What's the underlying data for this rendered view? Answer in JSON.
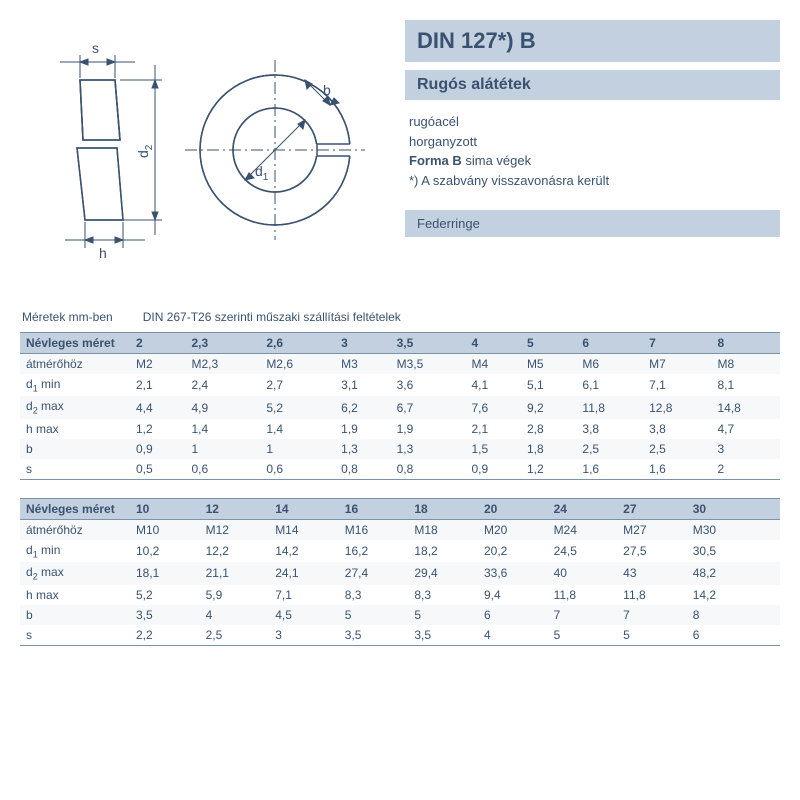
{
  "colors": {
    "text": "#3a5270",
    "header_bg": "#c2d0df",
    "row_stripe": "#f6f8fa",
    "border": "#7a93ab",
    "stroke": "#3a5270",
    "fill_shade": "#b8c8d8"
  },
  "info": {
    "title": "DIN 127*) B",
    "subtitle": "Rugós alátétek",
    "line1": "rugóacél",
    "line2": "horganyzott",
    "line3a": "Forma B",
    "line3b": " sima végek",
    "line4": "*) A szabvány visszavonásra került",
    "footer": "Federringe"
  },
  "diagram_labels": {
    "s": "s",
    "d2": "d",
    "d2sub": "2",
    "h": "h",
    "d1": "d",
    "d1sub": "1",
    "b": "b"
  },
  "caption": {
    "left": "Méretek mm-ben",
    "right": "DIN 267-T26 szerinti műszaki szállítási feltételek"
  },
  "row_labels": {
    "nm": "Névleges méret",
    "at": "átmérőhöz",
    "d1": "d₁ min",
    "d2": "d₂ max",
    "hm": "h max",
    "b": "b",
    "s": "s"
  },
  "table1": {
    "sizes": [
      "2",
      "2,3",
      "2,6",
      "3",
      "3,5",
      "4",
      "5",
      "6",
      "7",
      "8"
    ],
    "rows": [
      [
        "M2",
        "M2,3",
        "M2,6",
        "M3",
        "M3,5",
        "M4",
        "M5",
        "M6",
        "M7",
        "M8"
      ],
      [
        "2,1",
        "2,4",
        "2,7",
        "3,1",
        "3,6",
        "4,1",
        "5,1",
        "6,1",
        "7,1",
        "8,1"
      ],
      [
        "4,4",
        "4,9",
        "5,2",
        "6,2",
        "6,7",
        "7,6",
        "9,2",
        "11,8",
        "12,8",
        "14,8"
      ],
      [
        "1,2",
        "1,4",
        "1,4",
        "1,9",
        "1,9",
        "2,1",
        "2,8",
        "3,8",
        "3,8",
        "4,7"
      ],
      [
        "0,9",
        "1",
        "1",
        "1,3",
        "1,3",
        "1,5",
        "1,8",
        "2,5",
        "2,5",
        "3"
      ],
      [
        "0,5",
        "0,6",
        "0,6",
        "0,8",
        "0,8",
        "0,9",
        "1,2",
        "1,6",
        "1,6",
        "2"
      ]
    ]
  },
  "table2": {
    "sizes": [
      "10",
      "12",
      "14",
      "16",
      "18",
      "20",
      "24",
      "27",
      "30"
    ],
    "rows": [
      [
        "M10",
        "M12",
        "M14",
        "M16",
        "M18",
        "M20",
        "M24",
        "M27",
        "M30"
      ],
      [
        "10,2",
        "12,2",
        "14,2",
        "16,2",
        "18,2",
        "20,2",
        "24,5",
        "27,5",
        "30,5"
      ],
      [
        "18,1",
        "21,1",
        "24,1",
        "27,4",
        "29,4",
        "33,6",
        "40",
        "43",
        "48,2"
      ],
      [
        "5,2",
        "5,9",
        "7,1",
        "8,3",
        "8,3",
        "9,4",
        "11,8",
        "11,8",
        "14,2"
      ],
      [
        "3,5",
        "4",
        "4,5",
        "5",
        "5",
        "6",
        "7",
        "7",
        "8"
      ],
      [
        "2,2",
        "2,5",
        "3",
        "3,5",
        "3,5",
        "4",
        "5",
        "5",
        "6"
      ]
    ]
  }
}
